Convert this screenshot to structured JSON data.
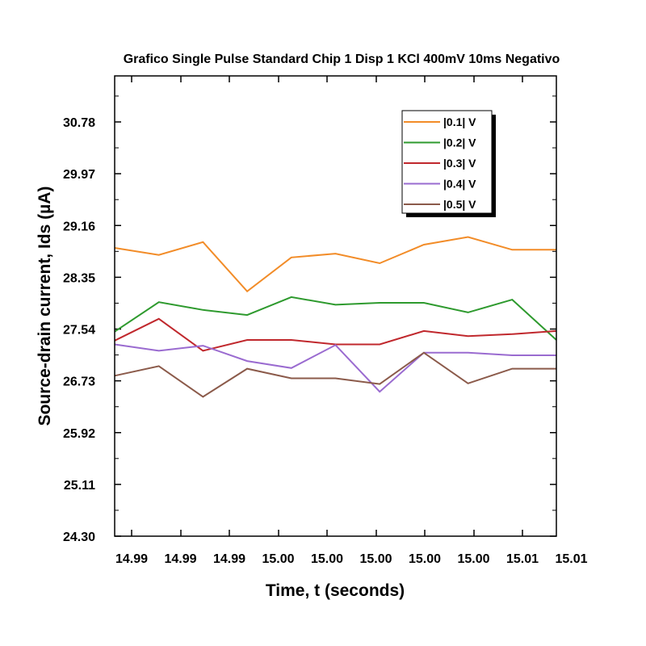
{
  "chart_data": {
    "type": "line",
    "title": "Grafico Single Pulse Standard Chip 1 Disp 1 KCl 400mV 10ms Negativo",
    "xlabel": "Time, t (seconds)",
    "ylabel": "Source-drain current, Ids (µA)",
    "x_tick_labels": [
      "14.99",
      "14.99",
      "14.99",
      "15.00",
      "15.00",
      "15.00",
      "15.00",
      "15.00",
      "15.01",
      "15.01"
    ],
    "y_ticks": [
      24.3,
      25.11,
      25.92,
      26.73,
      27.54,
      28.35,
      29.16,
      29.97,
      30.78
    ],
    "y_tick_labels": [
      "24.30",
      "25.11",
      "25.92",
      "26.73",
      "27.54",
      "28.35",
      "29.16",
      "29.97",
      "30.78"
    ],
    "xlim": [
      14.9866,
      15.0136
    ],
    "ylim": [
      24.3,
      31.5
    ],
    "x": [
      14.9866,
      14.9893,
      14.992,
      14.9947,
      14.9974,
      15.0001,
      15.0028,
      15.0055,
      15.0082,
      15.0109,
      15.0136
    ],
    "series": [
      {
        "name": "|0.1| V",
        "color": "#F28C28",
        "values": [
          28.81,
          28.7,
          28.9,
          28.13,
          28.66,
          28.72,
          28.57,
          28.86,
          28.98,
          28.78,
          28.78
        ]
      },
      {
        "name": "|0.2| V",
        "color": "#2E9A2E",
        "values": [
          27.5,
          27.96,
          27.84,
          27.76,
          28.04,
          27.92,
          27.95,
          27.95,
          27.8,
          28.0,
          27.37
        ]
      },
      {
        "name": "|0.3| V",
        "color": "#C0282D",
        "values": [
          27.36,
          27.7,
          27.2,
          27.37,
          27.37,
          27.3,
          27.3,
          27.51,
          27.43,
          27.46,
          27.51
        ]
      },
      {
        "name": "|0.4| V",
        "color": "#9A6BD0",
        "values": [
          27.3,
          27.2,
          27.28,
          27.04,
          26.93,
          27.29,
          26.56,
          27.17,
          27.17,
          27.13,
          27.13
        ]
      },
      {
        "name": "|0.5| V",
        "color": "#8B5A4A",
        "values": [
          26.81,
          26.96,
          26.48,
          26.92,
          26.77,
          26.77,
          26.68,
          27.17,
          26.69,
          26.92,
          26.92
        ]
      }
    ],
    "grid": false,
    "legend_position": "top-right"
  }
}
